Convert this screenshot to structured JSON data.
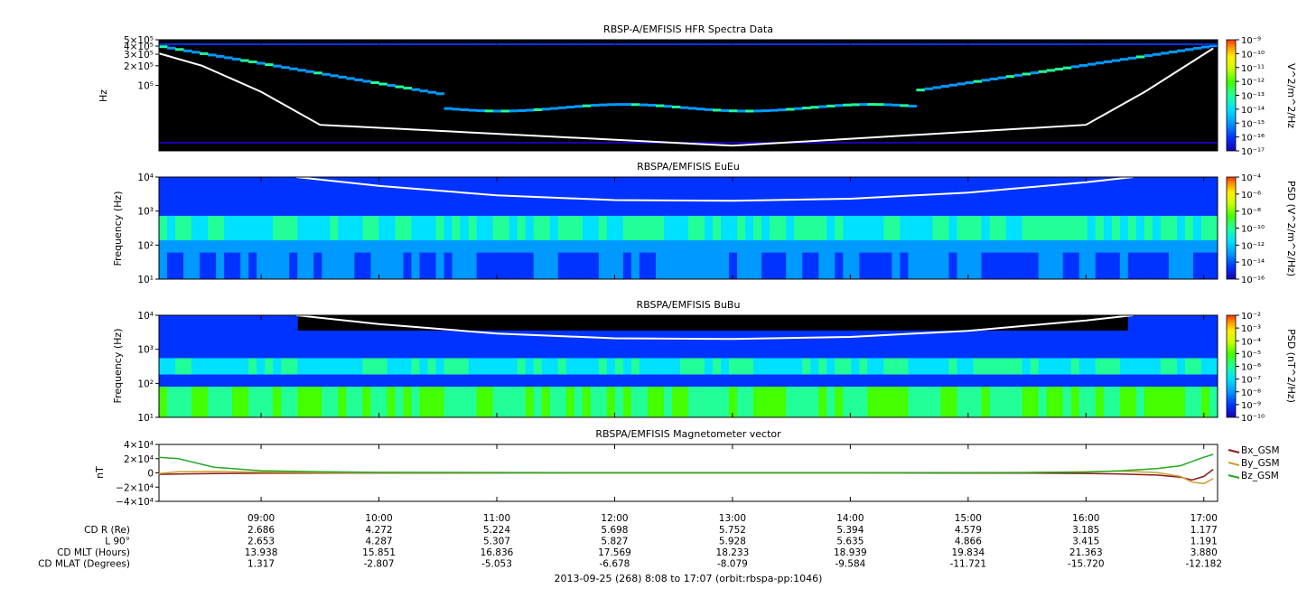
{
  "colors": {
    "spectrogram_background": "#000000",
    "cmap": [
      "#1a00b0",
      "#0033ff",
      "#0099ff",
      "#00e0ff",
      "#22ff99",
      "#44ff00",
      "#ccff00",
      "#ffee00",
      "#ff9900",
      "#ff3300"
    ],
    "bx": "#8b1a1a",
    "by": "#c8a030",
    "bz": "#22aa22",
    "overlay_line": "#ffffff"
  },
  "chart_data": [
    {
      "type": "heatmap",
      "title": "RBSP-A/EMFISIS  HFR Spectra Data",
      "ylabel": "Hz",
      "yscale": "log",
      "ylim": [
        10000,
        500000
      ],
      "ytick_labels": [
        "5×10⁵",
        "4×10⁵",
        "3×10⁵",
        "2×10⁵",
        "10⁵"
      ],
      "colorbar_label": "V^2/m^2/Hz",
      "colorbar_ticks": [
        "10⁻⁹",
        "10⁻¹⁰",
        "10⁻¹¹",
        "10⁻¹²",
        "10⁻¹³",
        "10⁻¹⁴",
        "10⁻¹⁵",
        "10⁻¹⁶",
        "10⁻¹⁷"
      ],
      "upper_hybrid_line": {
        "x": [
          8.13,
          8.5,
          9.0,
          9.5,
          13.0,
          16.0,
          16.5,
          17.0,
          17.08
        ],
        "y": [
          310000,
          200000,
          80000,
          25000,
          12000,
          25000,
          80000,
          300000,
          370000
        ]
      }
    },
    {
      "type": "heatmap",
      "title": "RBSPA/EMFISIS  EuEu",
      "ylabel": "Frequency (Hz)",
      "yscale": "log",
      "ylim": [
        10,
        10000
      ],
      "ytick_labels": [
        "10⁴",
        "10³",
        "10²",
        "10¹"
      ],
      "colorbar_label": "PSD (V^2/m^2/Hz)",
      "colorbar_ticks": [
        "10⁻⁴",
        "10⁻⁶",
        "10⁻⁸",
        "10⁻¹⁰",
        "10⁻¹²",
        "10⁻¹⁴",
        "10⁻¹⁶"
      ],
      "fce_line": {
        "x": [
          9.3,
          10.0,
          11.0,
          12.0,
          13.0,
          14.0,
          15.0,
          16.0,
          16.4
        ],
        "y": [
          10000,
          5500,
          2900,
          2100,
          2000,
          2300,
          3500,
          7000,
          10000
        ]
      }
    },
    {
      "type": "heatmap",
      "title": "RBSPA/EMFISIS  BuBu",
      "ylabel": "Frequency (Hz)",
      "yscale": "log",
      "ylim": [
        10,
        10000
      ],
      "ytick_labels": [
        "10⁴",
        "10³",
        "10²",
        "10¹"
      ],
      "colorbar_label": "PSD (nT^2/Hz)",
      "colorbar_ticks": [
        "10⁻²",
        "10⁻³",
        "10⁻⁴",
        "10⁻⁵",
        "10⁻⁶",
        "10⁻⁷",
        "10⁻⁸",
        "10⁻⁹",
        "10⁻¹⁰"
      ],
      "fce_line": {
        "x": [
          9.3,
          10.0,
          11.0,
          12.0,
          13.0,
          14.0,
          15.0,
          16.0,
          16.4
        ],
        "y": [
          10000,
          5500,
          2900,
          2100,
          2000,
          2300,
          3500,
          7000,
          10000
        ]
      }
    },
    {
      "type": "line",
      "title": "RBSPA/EMFISIS  Magnetometer vector",
      "ylabel": "nT",
      "ylim": [
        -40000,
        40000
      ],
      "ytick_labels": [
        "4×10⁴",
        "2×10⁴",
        "0",
        "−2×10⁴",
        "−4×10⁴"
      ],
      "x": [
        8.13,
        8.3,
        8.6,
        9.0,
        9.5,
        10.0,
        12.0,
        14.0,
        15.5,
        16.0,
        16.3,
        16.6,
        16.8,
        16.9,
        17.0,
        17.08
      ],
      "series": [
        {
          "name": "Bx_GSM",
          "values": [
            -2000,
            -1500,
            -1000,
            -500,
            -200,
            -100,
            -50,
            -50,
            -200,
            -800,
            -1500,
            -3000,
            -6000,
            -10000,
            -5000,
            5000
          ]
        },
        {
          "name": "By_GSM",
          "values": [
            -1000,
            1500,
            2000,
            1000,
            500,
            200,
            0,
            0,
            500,
            1500,
            2500,
            500,
            -5000,
            -13000,
            -15000,
            -8000
          ]
        },
        {
          "name": "Bz_GSM",
          "values": [
            22000,
            20000,
            8000,
            3000,
            1500,
            800,
            200,
            200,
            500,
            1200,
            3000,
            6000,
            10000,
            16000,
            22000,
            26000
          ]
        }
      ]
    }
  ],
  "x_axis": {
    "ticks": [
      "09:00",
      "10:00",
      "11:00",
      "12:00",
      "13:00",
      "14:00",
      "15:00",
      "16:00",
      "17:00"
    ],
    "range_hours": [
      8.1333,
      17.1167
    ]
  },
  "ephemeris": {
    "labels": [
      "CD R (Re)",
      "L 90°",
      "CD MLT (Hours)",
      "CD MLAT (Degrees)"
    ],
    "rows": [
      [
        "2.686",
        "4.272",
        "5.224",
        "5.698",
        "5.752",
        "5.394",
        "4.579",
        "3.185",
        "1.177"
      ],
      [
        "2.653",
        "4.287",
        "5.307",
        "5.827",
        "5.928",
        "5.635",
        "4.866",
        "3.415",
        "1.191"
      ],
      [
        "13.938",
        "15.851",
        "16.836",
        "17.569",
        "18.233",
        "18.939",
        "19.834",
        "21.363",
        "3.880"
      ],
      [
        "1.317",
        "-2.807",
        "-5.053",
        "-6.678",
        "-8.079",
        "-9.584",
        "-11.721",
        "-15.720",
        "-12.182"
      ]
    ]
  },
  "footer": "2013-09-25 (268) 8:08 to 17:07 (orbit:rbspa-pp:1046)"
}
